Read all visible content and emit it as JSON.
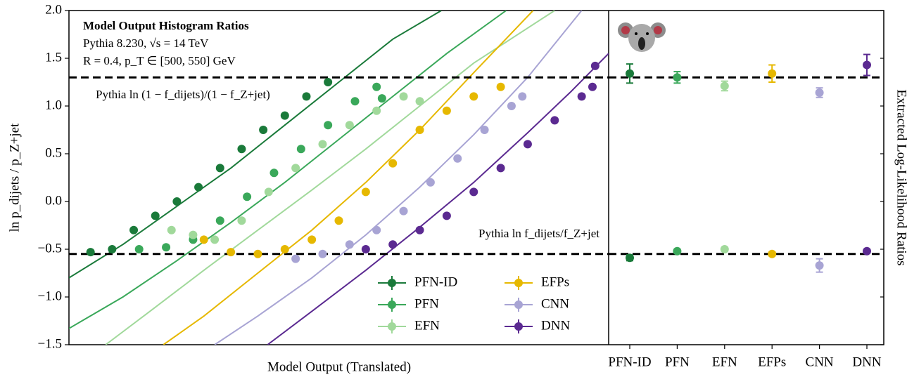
{
  "chart_data": [
    {
      "type": "scatter",
      "title": "Model Output Histogram Ratios",
      "subtitles": [
        "Pythia 8.230, √s = 14 TeV",
        "R = 0.4, p_T ∈ [500, 550] GeV"
      ],
      "x_label": "Model Output (Translated)",
      "y_label": "ln p_dijets / p_Z+jet",
      "xlim": [
        0,
        10
      ],
      "ylim": [
        -1.5,
        2.0
      ],
      "yticks": [
        {
          "value": -1.5,
          "label": "−1.5"
        },
        {
          "value": -1.0,
          "label": "−1.0"
        },
        {
          "value": -0.5,
          "label": "−0.5"
        },
        {
          "value": 0.0,
          "label": "0.0"
        },
        0.5,
        {
          "value": 1.0,
          "label": "1.0"
        },
        1.5,
        {
          "value": 2.0,
          "label": "2.0"
        }
      ],
      "hlines": [
        {
          "value": 1.3,
          "label": "Pythia ln (1 − f_dijets)/(1 − f_Z+jet)"
        },
        {
          "value": -0.55,
          "label": "Pythia ln f_dijets/f_Z+jet"
        }
      ],
      "series": [
        {
          "name": "PFN-ID",
          "color": "#1a7a3a",
          "x": [
            0.4,
            0.8,
            1.2,
            1.6,
            2.0,
            2.4,
            2.8,
            3.2,
            3.6,
            4.0,
            4.4,
            4.8
          ],
          "values": [
            -0.53,
            -0.5,
            -0.3,
            -0.15,
            0.0,
            0.15,
            0.35,
            0.55,
            0.75,
            0.9,
            1.1,
            1.25
          ]
        },
        {
          "name": "PFN",
          "color": "#3aa85a",
          "x": [
            1.3,
            1.8,
            2.3,
            2.8,
            3.3,
            3.8,
            4.3,
            4.8,
            5.3,
            5.7,
            5.8
          ],
          "values": [
            -0.5,
            -0.48,
            -0.4,
            -0.2,
            0.05,
            0.3,
            0.55,
            0.8,
            1.05,
            1.2,
            1.08
          ]
        },
        {
          "name": "EFN",
          "color": "#a1d99b",
          "x": [
            1.9,
            2.3,
            2.7,
            3.2,
            3.7,
            4.2,
            4.7,
            5.2,
            5.7,
            6.2,
            6.5
          ],
          "values": [
            -0.3,
            -0.35,
            -0.4,
            -0.2,
            0.1,
            0.35,
            0.6,
            0.8,
            0.95,
            1.1,
            1.05
          ]
        },
        {
          "name": "EFPs",
          "color": "#e6b800",
          "x": [
            2.5,
            3.0,
            3.5,
            4.0,
            4.5,
            5.0,
            5.5,
            6.0,
            6.5,
            7.0,
            7.5,
            8.0
          ],
          "values": [
            -0.4,
            -0.53,
            -0.55,
            -0.5,
            -0.4,
            -0.2,
            0.1,
            0.4,
            0.75,
            0.95,
            1.1,
            1.2
          ]
        },
        {
          "name": "CNN",
          "color": "#a8a4d4",
          "x": [
            4.2,
            4.7,
            5.2,
            5.7,
            6.2,
            6.7,
            7.2,
            7.7,
            8.2,
            8.4
          ],
          "values": [
            -0.6,
            -0.55,
            -0.45,
            -0.3,
            -0.1,
            0.2,
            0.45,
            0.75,
            1.0,
            1.1
          ]
        },
        {
          "name": "DNN",
          "color": "#5b2a91",
          "x": [
            5.5,
            6.0,
            6.5,
            7.0,
            7.5,
            8.0,
            8.5,
            9.0,
            9.5,
            9.7,
            9.75
          ],
          "values": [
            -0.5,
            -0.45,
            -0.3,
            -0.15,
            0.1,
            0.35,
            0.6,
            0.85,
            1.1,
            1.2,
            1.42
          ]
        }
      ],
      "fits": [
        {
          "color": "#1a7a3a",
          "x": [
            0,
            1,
            2,
            3,
            4,
            5,
            6,
            6.9
          ],
          "values": [
            -0.8,
            -0.45,
            -0.05,
            0.35,
            0.8,
            1.25,
            1.7,
            2.0
          ]
        },
        {
          "color": "#3aa85a",
          "x": [
            0,
            1,
            2,
            3,
            4,
            5,
            6,
            7,
            8.1
          ],
          "values": [
            -1.33,
            -1.0,
            -0.62,
            -0.22,
            0.2,
            0.65,
            1.1,
            1.55,
            2.0
          ]
        },
        {
          "color": "#a1d99b",
          "x": [
            0.68,
            1.5,
            2.5,
            3.5,
            4.5,
            5.5,
            6.5,
            7.5,
            9.0
          ],
          "values": [
            -1.5,
            -1.15,
            -0.72,
            -0.3,
            0.12,
            0.55,
            1.0,
            1.45,
            2.0
          ]
        },
        {
          "color": "#e6b800",
          "x": [
            1.75,
            2.5,
            3.5,
            4.5,
            5.5,
            6.5,
            7.5,
            8.6
          ],
          "values": [
            -1.5,
            -1.2,
            -0.75,
            -0.3,
            0.2,
            0.75,
            1.35,
            2.0
          ]
        },
        {
          "color": "#a8a4d4",
          "x": [
            2.7,
            3.5,
            4.5,
            5.5,
            6.5,
            7.5,
            8.5,
            9.5
          ],
          "values": [
            -1.5,
            -1.2,
            -0.8,
            -0.35,
            0.15,
            0.7,
            1.3,
            2.0
          ]
        },
        {
          "color": "#5b2a91",
          "x": [
            3.68,
            4.5,
            5.5,
            6.5,
            7.5,
            8.5,
            9.3,
            10.0
          ],
          "values": [
            -1.5,
            -1.15,
            -0.72,
            -0.27,
            0.2,
            0.72,
            1.15,
            1.55
          ]
        }
      ],
      "legend": "lower right"
    },
    {
      "type": "errorbar",
      "y_label": "Extracted Log-Likelihood Ratios",
      "ylim": [
        -1.5,
        2.0
      ],
      "categories": [
        "PFN-ID",
        "PFN",
        "EFN",
        "EFPs",
        "CNN",
        "DNN"
      ],
      "colors": [
        "#1a7a3a",
        "#3aa85a",
        "#a1d99b",
        "#e6b800",
        "#a8a4d4",
        "#5b2a91"
      ],
      "series": [
        {
          "values": [
            1.34,
            1.3,
            1.21,
            1.34,
            1.14,
            1.43
          ],
          "errors": [
            0.1,
            0.06,
            0.05,
            0.09,
            0.05,
            0.11
          ]
        },
        {
          "values": [
            -0.59,
            -0.52,
            -0.5,
            -0.55,
            -0.67,
            -0.52
          ],
          "errors": [
            0.03,
            0.02,
            0.02,
            0.02,
            0.07,
            0.02
          ]
        }
      ]
    }
  ]
}
